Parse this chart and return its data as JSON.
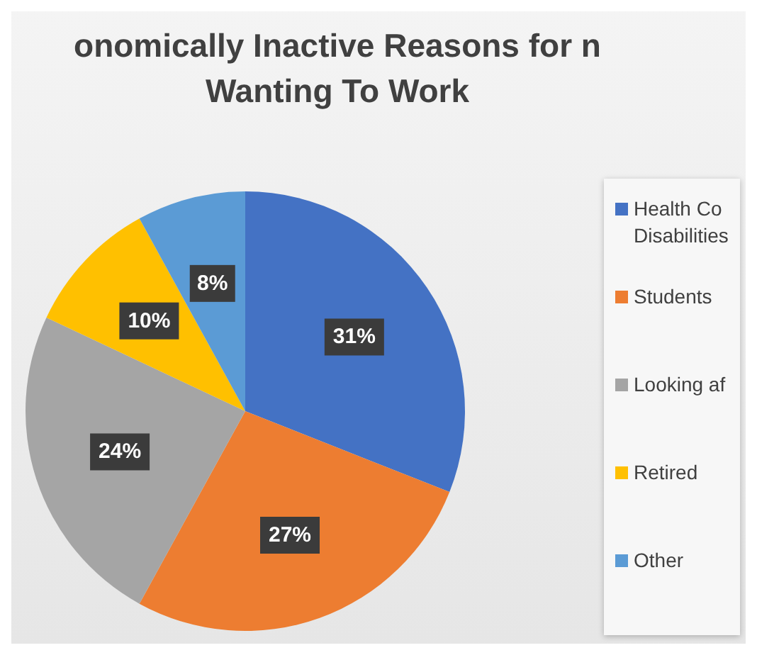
{
  "chart_data": {
    "type": "pie",
    "title": "onomically Inactive Reasons for n Wanting To Work",
    "categories": [
      "Health Co Disabilities",
      "Students",
      "Looking af",
      "Retired",
      "Other"
    ],
    "values": [
      31,
      27,
      24,
      10,
      8
    ],
    "colors": [
      "#4472c4",
      "#ed7d31",
      "#a5a5a5",
      "#ffc000",
      "#5b9bd5"
    ],
    "value_labels": [
      "31%",
      "27%",
      "24%",
      "10%",
      "8%"
    ],
    "legend": "right"
  }
}
